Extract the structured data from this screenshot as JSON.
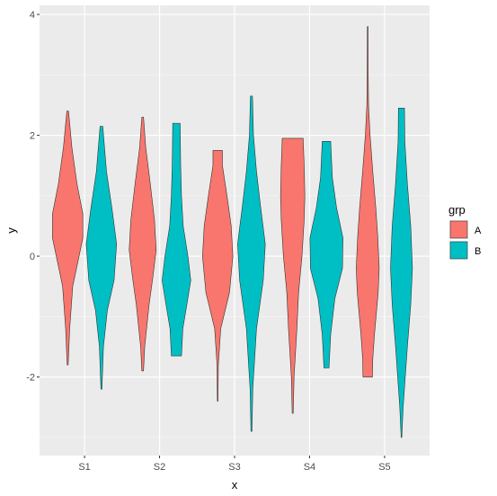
{
  "chart_data": {
    "type": "violin",
    "title": "",
    "xlabel": "x",
    "ylabel": "y",
    "categories": [
      "S1",
      "S2",
      "S3",
      "S4",
      "S5"
    ],
    "yticks": [
      -2,
      0,
      2,
      4
    ],
    "ylim": [
      -3.3,
      4.15
    ],
    "grid": true,
    "legend": {
      "title": "grp",
      "position": "right",
      "items": [
        {
          "label": "A",
          "color": "#F8766D"
        },
        {
          "label": "B",
          "color": "#00BFC4"
        }
      ]
    },
    "series": [
      {
        "name": "A",
        "color": "#F8766D",
        "violins": [
          {
            "category": "S1",
            "min": -1.8,
            "max": 2.4,
            "profile": [
              [
                -1.8,
                0.03
              ],
              [
                -1.2,
                0.12
              ],
              [
                -0.5,
                0.3
              ],
              [
                0.3,
                0.9
              ],
              [
                0.7,
                0.9
              ],
              [
                1.2,
                0.55
              ],
              [
                1.8,
                0.25
              ],
              [
                2.4,
                0.05
              ]
            ]
          },
          {
            "category": "S2",
            "min": -1.9,
            "max": 2.3,
            "profile": [
              [
                -1.9,
                0.05
              ],
              [
                -1.5,
                0.12
              ],
              [
                -0.8,
                0.38
              ],
              [
                -0.4,
                0.58
              ],
              [
                0.1,
                0.8
              ],
              [
                0.6,
                0.7
              ],
              [
                1.2,
                0.45
              ],
              [
                1.8,
                0.18
              ],
              [
                2.3,
                0.05
              ]
            ]
          },
          {
            "category": "S3",
            "min": -2.4,
            "max": 1.75,
            "profile": [
              [
                -2.4,
                0.02
              ],
              [
                -1.8,
                0.04
              ],
              [
                -1.2,
                0.18
              ],
              [
                -0.6,
                0.7
              ],
              [
                0.0,
                0.9
              ],
              [
                0.5,
                0.8
              ],
              [
                1.0,
                0.55
              ],
              [
                1.5,
                0.28
              ],
              [
                1.75,
                0.28
              ]
            ]
          },
          {
            "category": "S4",
            "min": -2.6,
            "max": 1.95,
            "profile": [
              [
                -2.6,
                0.03
              ],
              [
                -2.0,
                0.08
              ],
              [
                -1.2,
                0.25
              ],
              [
                -0.6,
                0.35
              ],
              [
                0.0,
                0.55
              ],
              [
                0.6,
                0.68
              ],
              [
                1.0,
                0.72
              ],
              [
                1.5,
                0.68
              ],
              [
                1.95,
                0.62
              ]
            ]
          },
          {
            "category": "S5",
            "min": -2.0,
            "max": 3.8,
            "profile": [
              [
                -2.0,
                0.28
              ],
              [
                -1.7,
                0.3
              ],
              [
                -1.3,
                0.4
              ],
              [
                -0.6,
                0.62
              ],
              [
                -0.2,
                0.68
              ],
              [
                0.3,
                0.6
              ],
              [
                0.8,
                0.48
              ],
              [
                1.4,
                0.3
              ],
              [
                2.0,
                0.14
              ],
              [
                2.5,
                0.05
              ],
              [
                3.0,
                0.03
              ],
              [
                3.8,
                0.02
              ]
            ]
          }
        ]
      },
      {
        "name": "B",
        "color": "#00BFC4",
        "violins": [
          {
            "category": "S1",
            "min": -2.2,
            "max": 2.15,
            "profile": [
              [
                -2.2,
                0.03
              ],
              [
                -1.5,
                0.12
              ],
              [
                -0.9,
                0.35
              ],
              [
                -0.4,
                0.75
              ],
              [
                0.2,
                0.9
              ],
              [
                0.8,
                0.62
              ],
              [
                1.4,
                0.3
              ],
              [
                2.15,
                0.08
              ]
            ]
          },
          {
            "category": "S2",
            "min": -1.65,
            "max": 2.2,
            "profile": [
              [
                -1.65,
                0.3
              ],
              [
                -1.2,
                0.38
              ],
              [
                -0.8,
                0.62
              ],
              [
                -0.4,
                0.85
              ],
              [
                0.0,
                0.68
              ],
              [
                0.5,
                0.4
              ],
              [
                1.0,
                0.3
              ],
              [
                1.5,
                0.25
              ],
              [
                2.2,
                0.22
              ]
            ]
          },
          {
            "category": "S3",
            "min": -2.9,
            "max": 2.65,
            "profile": [
              [
                -2.9,
                0.03
              ],
              [
                -2.2,
                0.08
              ],
              [
                -1.2,
                0.3
              ],
              [
                -0.4,
                0.7
              ],
              [
                0.2,
                0.82
              ],
              [
                0.8,
                0.55
              ],
              [
                1.4,
                0.3
              ],
              [
                2.0,
                0.12
              ],
              [
                2.65,
                0.06
              ]
            ]
          },
          {
            "category": "S4",
            "min": -1.85,
            "max": 1.9,
            "profile": [
              [
                -1.85,
                0.15
              ],
              [
                -1.3,
                0.25
              ],
              [
                -0.7,
                0.5
              ],
              [
                -0.2,
                0.95
              ],
              [
                0.3,
                0.98
              ],
              [
                0.8,
                0.6
              ],
              [
                1.3,
                0.35
              ],
              [
                1.9,
                0.25
              ]
            ]
          },
          {
            "category": "S5",
            "min": -3.0,
            "max": 2.45,
            "profile": [
              [
                -3.0,
                0.02
              ],
              [
                -2.5,
                0.1
              ],
              [
                -1.5,
                0.35
              ],
              [
                -0.8,
                0.55
              ],
              [
                -0.2,
                0.65
              ],
              [
                0.5,
                0.55
              ],
              [
                1.2,
                0.35
              ],
              [
                1.9,
                0.2
              ],
              [
                2.45,
                0.18
              ]
            ]
          }
        ]
      }
    ]
  }
}
